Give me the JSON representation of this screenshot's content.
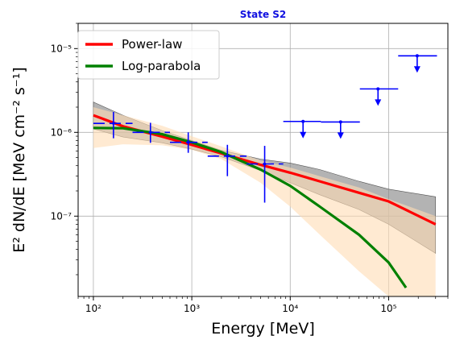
{
  "chart_data": {
    "type": "line",
    "title": "State S2",
    "xlabel": "Energy [MeV]",
    "ylabel": "E² dN/dE [MeV cm⁻² s⁻¹]",
    "xscale": "log",
    "yscale": "log",
    "xlim": [
      70,
      400000
    ],
    "ylim": [
      1.1e-08,
      2e-05
    ],
    "grid": true,
    "legend_position": "upper-left",
    "x_tick_labels": [
      {
        "value": 100,
        "label": "10²"
      },
      {
        "value": 1000,
        "label": "10³"
      },
      {
        "value": 10000,
        "label": "10⁴"
      },
      {
        "value": 100000,
        "label": "10⁵"
      }
    ],
    "y_tick_labels": [
      {
        "value": 1e-07,
        "label": "10⁻⁷"
      },
      {
        "value": 1e-06,
        "label": "10⁻⁶"
      },
      {
        "value": 1e-05,
        "label": "10⁻⁵"
      }
    ],
    "colors": {
      "power_law": "#ff0000",
      "log_parabola": "#008000",
      "data_points": "#0000ff",
      "power_law_band": "#808080",
      "log_parabola_band": "#ffdcb4",
      "title": "#1010e0"
    },
    "series": [
      {
        "name": "Power-law",
        "model": "power-law",
        "x": [
          100,
          200,
          500,
          1000,
          2000,
          5000,
          10000,
          20000,
          50000,
          100000,
          300000
        ],
        "y": [
          1.6e-06,
          1.18e-06,
          8.9e-07,
          7.1e-07,
          5.6e-07,
          4.1e-07,
          3.3e-07,
          2.6e-07,
          1.9e-07,
          1.5e-07,
          8e-08
        ],
        "band_upper": [
          2.3e-06,
          1.6e-06,
          1.05e-06,
          8e-07,
          6.1e-07,
          4.8e-07,
          4.3e-07,
          3.6e-07,
          2.6e-07,
          2.1e-07,
          1.7e-07
        ],
        "band_lower": [
          1.1e-06,
          8.8e-07,
          7.5e-07,
          6.3e-07,
          5.1e-07,
          3.5e-07,
          2.5e-07,
          1.8e-07,
          1.2e-07,
          8e-08,
          3.6e-08
        ]
      },
      {
        "name": "Log-parabola",
        "model": "log-parabola",
        "x": [
          100,
          200,
          500,
          1000,
          2000,
          5000,
          10000,
          20000,
          50000,
          100000,
          150000
        ],
        "y": [
          1.13e-06,
          1.12e-06,
          9.5e-07,
          7.6e-07,
          5.8e-07,
          3.6e-07,
          2.3e-07,
          1.3e-07,
          6e-08,
          2.8e-08,
          1.4e-08
        ],
        "band_upper": [
          2e-06,
          1.6e-06,
          1.2e-06,
          9e-07,
          6.8e-07,
          4.6e-07,
          3.8e-07,
          3e-07,
          2.2e-07,
          1.5e-07,
          1e-07
        ],
        "band_lower": [
          6.5e-07,
          7.2e-07,
          7e-07,
          6.2e-07,
          4.8e-07,
          2.5e-07,
          1.3e-07,
          6e-08,
          2.2e-08,
          1.1e-08,
          1.1e-08
        ],
        "band_x": [
          100,
          200,
          500,
          1000,
          2000,
          5000,
          10000,
          20000,
          50000,
          100000,
          300000
        ],
        "band_upper_full": [
          2e-06,
          1.6e-06,
          1.2e-06,
          9e-07,
          6.8e-07,
          4.6e-07,
          3.8e-07,
          3e-07,
          2.2e-07,
          1.6e-07,
          1e-07
        ],
        "band_lower_full": [
          6.5e-07,
          7.2e-07,
          7e-07,
          6.2e-07,
          4.8e-07,
          2.5e-07,
          1.3e-07,
          6e-08,
          2.2e-08,
          1.1e-08,
          1.1e-08
        ]
      }
    ],
    "data_points": [
      {
        "x": 160,
        "y": 1.28e-06,
        "x_low": 100,
        "x_high": 250,
        "y_low": 8.5e-07,
        "y_high": 1.75e-06
      },
      {
        "x": 380,
        "y": 1e-06,
        "x_low": 250,
        "x_high": 600,
        "y_low": 7.5e-07,
        "y_high": 1.3e-06
      },
      {
        "x": 920,
        "y": 7.6e-07,
        "x_low": 600,
        "x_high": 1450,
        "y_low": 5.7e-07,
        "y_high": 1e-06
      },
      {
        "x": 2300,
        "y": 5.2e-07,
        "x_low": 1450,
        "x_high": 3600,
        "y_low": 3e-07,
        "y_high": 7.1e-07
      },
      {
        "x": 5500,
        "y": 4.2e-07,
        "x_low": 3600,
        "x_high": 8500,
        "y_low": 1.45e-07,
        "y_high": 6.9e-07
      }
    ],
    "upper_limits": [
      {
        "x": 13500,
        "y": 1.35e-06,
        "x_low": 8500,
        "x_high": 20500
      },
      {
        "x": 32500,
        "y": 1.33e-06,
        "x_low": 20500,
        "x_high": 51000
      },
      {
        "x": 78000,
        "y": 3.3e-06,
        "x_low": 51000,
        "x_high": 125000
      },
      {
        "x": 195000,
        "y": 8.2e-06,
        "x_low": 125000,
        "x_high": 310000
      }
    ]
  }
}
